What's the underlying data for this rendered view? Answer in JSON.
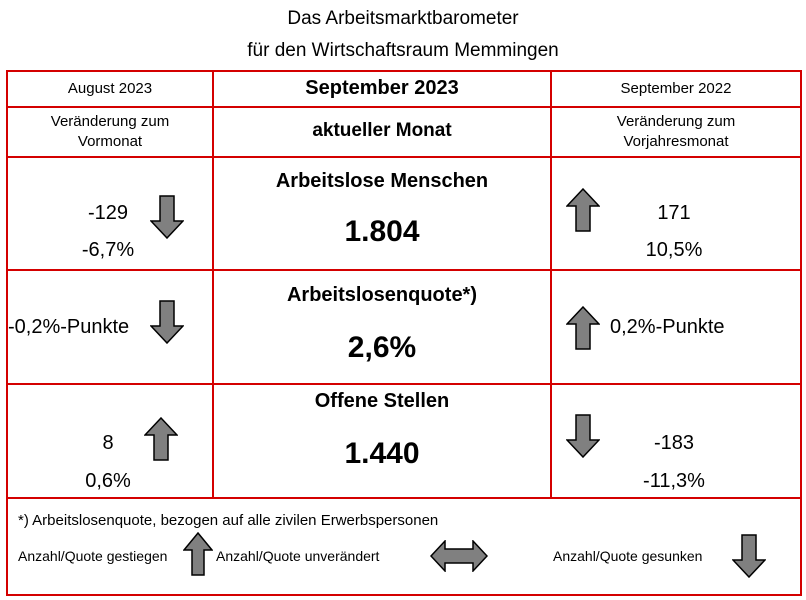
{
  "title": {
    "line1": "Das Arbeitsmarktbarometer",
    "line2": "für den Wirtschaftsraum Memmingen"
  },
  "header": {
    "left": "August 2023",
    "center": "September 2023",
    "right": "September 2022"
  },
  "subheader": {
    "left_line1": "Veränderung zum",
    "left_line2": "Vormonat",
    "center": "aktueller Monat",
    "right_line1": "Veränderung zum",
    "right_line2": "Vorjahresmonat"
  },
  "rows": [
    {
      "title": "Arbeitslose Menschen",
      "value": "1.804",
      "left_abs": "-129",
      "left_pct": "-6,7%",
      "left_trend": "down",
      "right_abs": "171",
      "right_pct": "10,5%",
      "right_trend": "up"
    },
    {
      "title": "Arbeitslosenquote*)",
      "value": "2,6%",
      "left_text": "-0,2%-Punkte",
      "left_trend": "down",
      "right_text": "0,2%-Punkte",
      "right_trend": "up"
    },
    {
      "title": "Offene Stellen",
      "value": "1.440",
      "left_abs": "8",
      "left_pct": "0,6%",
      "left_trend": "up",
      "right_abs": "-183",
      "right_pct": "-11,3%",
      "right_trend": "down"
    }
  ],
  "footnote": "*) Arbeitslosenquote, bezogen auf alle zivilen Erwerbspersonen",
  "legend": {
    "up": "Anzahl/Quote gestiegen",
    "same": "Anzahl/Quote unverändert",
    "down": "Anzahl/Quote gesunken"
  },
  "colors": {
    "grid": "#d40000",
    "arrow_fill": "#808080"
  }
}
